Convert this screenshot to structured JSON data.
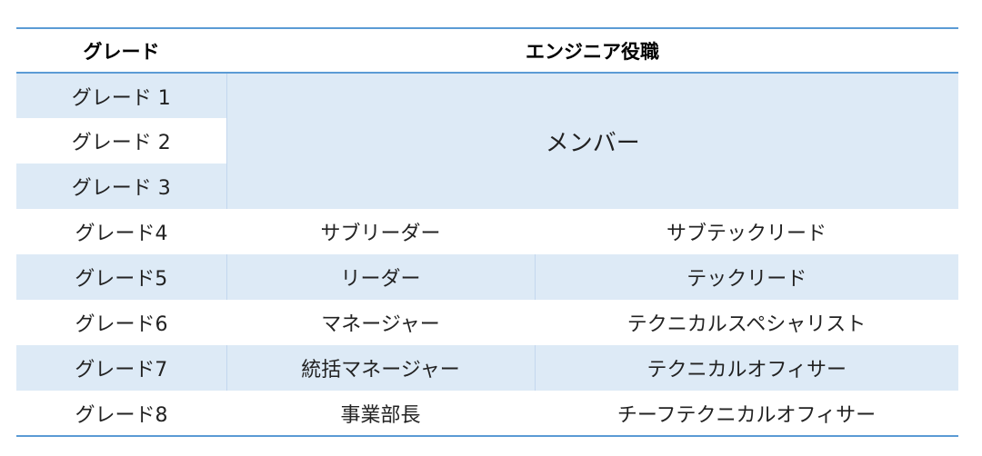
{
  "header": {
    "grade": "グレード",
    "role": "エンジニア役職"
  },
  "member_label": "メンバー",
  "rows": [
    {
      "grade": "グレード 1"
    },
    {
      "grade": "グレード 2"
    },
    {
      "grade": "グレード 3"
    },
    {
      "grade": "グレード4",
      "manager": "サブリーダー",
      "tech": "サブテックリード"
    },
    {
      "grade": "グレード5",
      "manager": "リーダー",
      "tech": "テックリード"
    },
    {
      "grade": "グレード6",
      "manager": "マネージャー",
      "tech": "テクニカルスペシャリスト"
    },
    {
      "grade": "グレード7",
      "manager": "統括マネージャー",
      "tech": "テクニカルオフィサー"
    },
    {
      "grade": "グレード8",
      "manager": "事業部長",
      "tech": "チーフテクニカルオフィサー"
    }
  ],
  "colors": {
    "accent_border": "#5b9bd5",
    "band": "#ddeaf6"
  }
}
